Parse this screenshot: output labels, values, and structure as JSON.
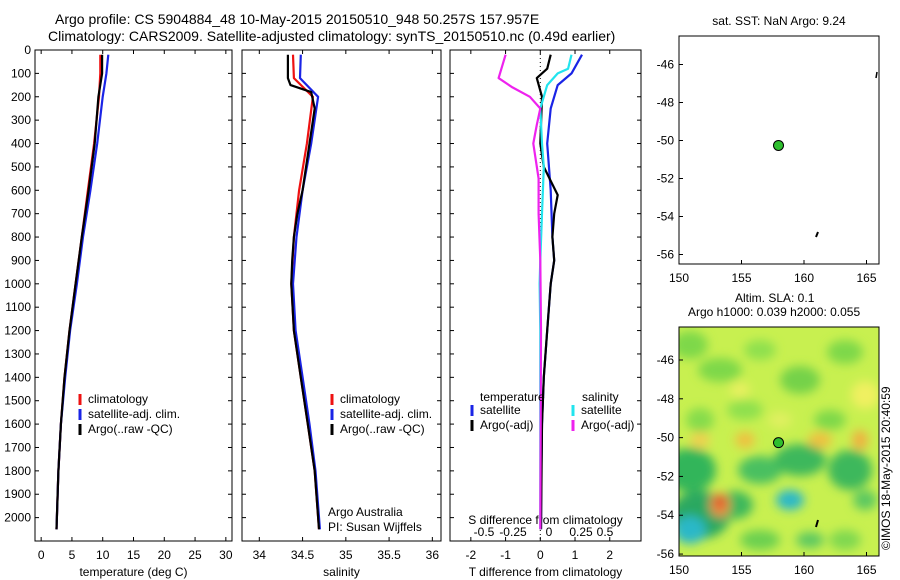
{
  "header": {
    "title_line1": "Argo profile: CS 5904884_48 10-May-2015 20150510_948 50.257S 157.957E",
    "title_line2": "Climatology: CARS2009. Satellite-adjusted climatology: synTS_20150510.nc (0.49d earlier)"
  },
  "credit": "©IMOS 18-May-2015 20:40:59",
  "colors": {
    "climatology": "#ee1111",
    "satellite": "#1a24e6",
    "argo": "#000000",
    "sat_sal": "#22e4ee",
    "argo_sal": "#ee22ee",
    "float_marker": "#2fbf2f"
  },
  "chart_data": [
    {
      "id": "temperature",
      "type": "line",
      "xlabel": "temperature (deg C)",
      "ylabel": "",
      "xlim": [
        -1,
        31
      ],
      "ylim": [
        2100,
        0
      ],
      "xticks": [
        0,
        5,
        10,
        15,
        20,
        25,
        30
      ],
      "yticks": [
        0,
        100,
        200,
        300,
        400,
        500,
        600,
        700,
        800,
        900,
        1000,
        1100,
        1200,
        1300,
        1400,
        1500,
        1600,
        1700,
        1800,
        1900,
        2000
      ],
      "legend": [
        "climatology",
        "satellite-adj. clim.",
        "Argo(..raw -QC)"
      ],
      "series": [
        {
          "name": "climatology",
          "color": "climatology",
          "x": [
            9.6,
            9.6,
            9.4,
            8.6,
            7.6,
            6.6,
            5.6,
            4.6,
            3.8,
            3.2,
            2.8,
            2.5
          ],
          "y": [
            20,
            100,
            200,
            400,
            600,
            800,
            1000,
            1200,
            1400,
            1600,
            1800,
            2050
          ]
        },
        {
          "name": "satellite-adj. clim.",
          "color": "satellite",
          "x": [
            10.9,
            10.6,
            10.0,
            9.1,
            8.0,
            6.8,
            5.8,
            4.7,
            3.9,
            3.2,
            2.8,
            2.5
          ],
          "y": [
            20,
            100,
            200,
            400,
            600,
            800,
            1000,
            1200,
            1400,
            1600,
            1800,
            2050
          ]
        },
        {
          "name": "Argo(..raw -QC)",
          "color": "argo",
          "x": [
            9.9,
            9.9,
            9.3,
            8.7,
            7.7,
            6.6,
            5.6,
            4.6,
            3.8,
            3.2,
            2.8,
            2.5
          ],
          "y": [
            20,
            100,
            200,
            400,
            600,
            800,
            1000,
            1200,
            1400,
            1600,
            1800,
            2050
          ]
        }
      ]
    },
    {
      "id": "salinity",
      "type": "line",
      "xlabel": "salinity",
      "ylabel": "",
      "xlim": [
        33.8,
        36.1
      ],
      "ylim": [
        2100,
        0
      ],
      "xticks": [
        34,
        34.5,
        35,
        35.5,
        36
      ],
      "legend": [
        "climatology",
        "satellite-adj. clim.",
        "Argo(..raw -QC)"
      ],
      "annotation": [
        "Argo Australia",
        "PI: Susan Wijffels"
      ],
      "series": [
        {
          "name": "climatology",
          "color": "climatology",
          "x": [
            34.39,
            34.4,
            34.62,
            34.55,
            34.46,
            34.4,
            34.37,
            34.4,
            34.48,
            34.56,
            34.64,
            34.69
          ],
          "y": [
            20,
            120,
            200,
            400,
            600,
            800,
            1000,
            1200,
            1400,
            1600,
            1800,
            2050
          ]
        },
        {
          "name": "satellite-adj. clim.",
          "color": "satellite",
          "x": [
            34.48,
            34.47,
            34.68,
            34.6,
            34.5,
            34.43,
            34.39,
            34.42,
            34.5,
            34.58,
            34.65,
            34.7
          ],
          "y": [
            20,
            120,
            200,
            400,
            600,
            800,
            1000,
            1200,
            1400,
            1600,
            1800,
            2050
          ]
        },
        {
          "name": "Argo(..raw -QC)",
          "color": "argo",
          "x": [
            34.33,
            34.33,
            34.36,
            34.6,
            34.64,
            34.58,
            34.5,
            34.44,
            34.4,
            34.38,
            34.37,
            34.4,
            34.48,
            34.56,
            34.64,
            34.69
          ],
          "y": [
            20,
            120,
            150,
            180,
            250,
            400,
            600,
            700,
            800,
            900,
            1000,
            1200,
            1400,
            1600,
            1800,
            2050
          ]
        }
      ]
    },
    {
      "id": "difference",
      "type": "line",
      "xlabel": "T difference from climatology",
      "xlabel_top": "S difference from climatology",
      "xlim": [
        -2.6,
        2.9
      ],
      "ylim": [
        2100,
        0
      ],
      "xticks": [
        -2,
        -1,
        0,
        1,
        2
      ],
      "s_xticks": [
        -0.5,
        -0.25,
        0,
        0.25,
        0.5
      ],
      "legend": {
        "temperature_header": "temperature",
        "salinity_header": "salinity",
        "entries": [
          "satellite",
          "Argo(-adj)",
          "satellite",
          "Argo(-adj)"
        ]
      },
      "series": [
        {
          "name": "temperature satellite",
          "color": "satellite",
          "x": [
            1.2,
            0.9,
            0.5,
            0.3,
            0.2,
            0.3,
            0.35,
            0.4,
            0.3,
            0.2,
            0.1,
            0.05,
            0.03,
            0.02
          ],
          "y": [
            20,
            100,
            150,
            250,
            400,
            600,
            800,
            900,
            1000,
            1200,
            1400,
            1600,
            1800,
            2050
          ]
        },
        {
          "name": "temperature Argo(-adj)",
          "color": "argo",
          "x": [
            0.3,
            0.2,
            -0.1,
            0.05,
            0.0,
            0.1,
            0.3,
            0.5,
            0.4,
            0.35,
            0.4,
            0.3,
            0.2,
            0.1,
            0.05,
            0.02
          ],
          "y": [
            20,
            80,
            120,
            200,
            400,
            500,
            560,
            620,
            700,
            800,
            900,
            1000,
            1200,
            1400,
            1600,
            2050
          ]
        },
        {
          "name": "salinity satellite",
          "color": "sat_sal",
          "x": [
            0.9,
            0.8,
            0.5,
            0.2,
            0.0,
            0.05,
            0.1,
            0.05,
            0.0,
            -0.02,
            0.0,
            0.0,
            0.0
          ],
          "y": [
            20,
            80,
            100,
            150,
            250,
            400,
            500,
            700,
            900,
            1000,
            1200,
            1600,
            2050
          ]
        },
        {
          "name": "salinity Argo(-adj)",
          "color": "argo_sal",
          "x": [
            -1.0,
            -1.2,
            -0.8,
            -0.3,
            0.0,
            -0.1,
            -0.2,
            -0.05,
            -0.05,
            0.0,
            0.02,
            0.0
          ],
          "y": [
            20,
            120,
            160,
            200,
            250,
            320,
            400,
            550,
            700,
            900,
            1200,
            2050
          ]
        }
      ]
    },
    {
      "id": "sst-map",
      "type": "scatter",
      "title": "sat. SST: NaN Argo: 9.24",
      "xlim": [
        150,
        166
      ],
      "ylim": [
        -56.5,
        -44.5
      ],
      "xticks": [
        150,
        155,
        160,
        165
      ],
      "yticks": [
        -46,
        -48,
        -50,
        -52,
        -54,
        -56
      ],
      "points": [
        {
          "name": "argo-float",
          "lon": 157.96,
          "lat": -50.26
        }
      ]
    },
    {
      "id": "sla-map",
      "type": "heatmap",
      "title_line1": "Altim. SLA: 0.1",
      "title_line2": "Argo h1000: 0.039 h2000: 0.055",
      "xlim": [
        150,
        166
      ],
      "ylim": [
        -56.1,
        -44.3
      ],
      "xticks": [
        150,
        155,
        160,
        165
      ],
      "yticks": [
        -46,
        -48,
        -50,
        -52,
        -54,
        -56
      ],
      "points": [
        {
          "name": "argo-float",
          "lon": 157.96,
          "lat": -50.26
        }
      ]
    }
  ]
}
